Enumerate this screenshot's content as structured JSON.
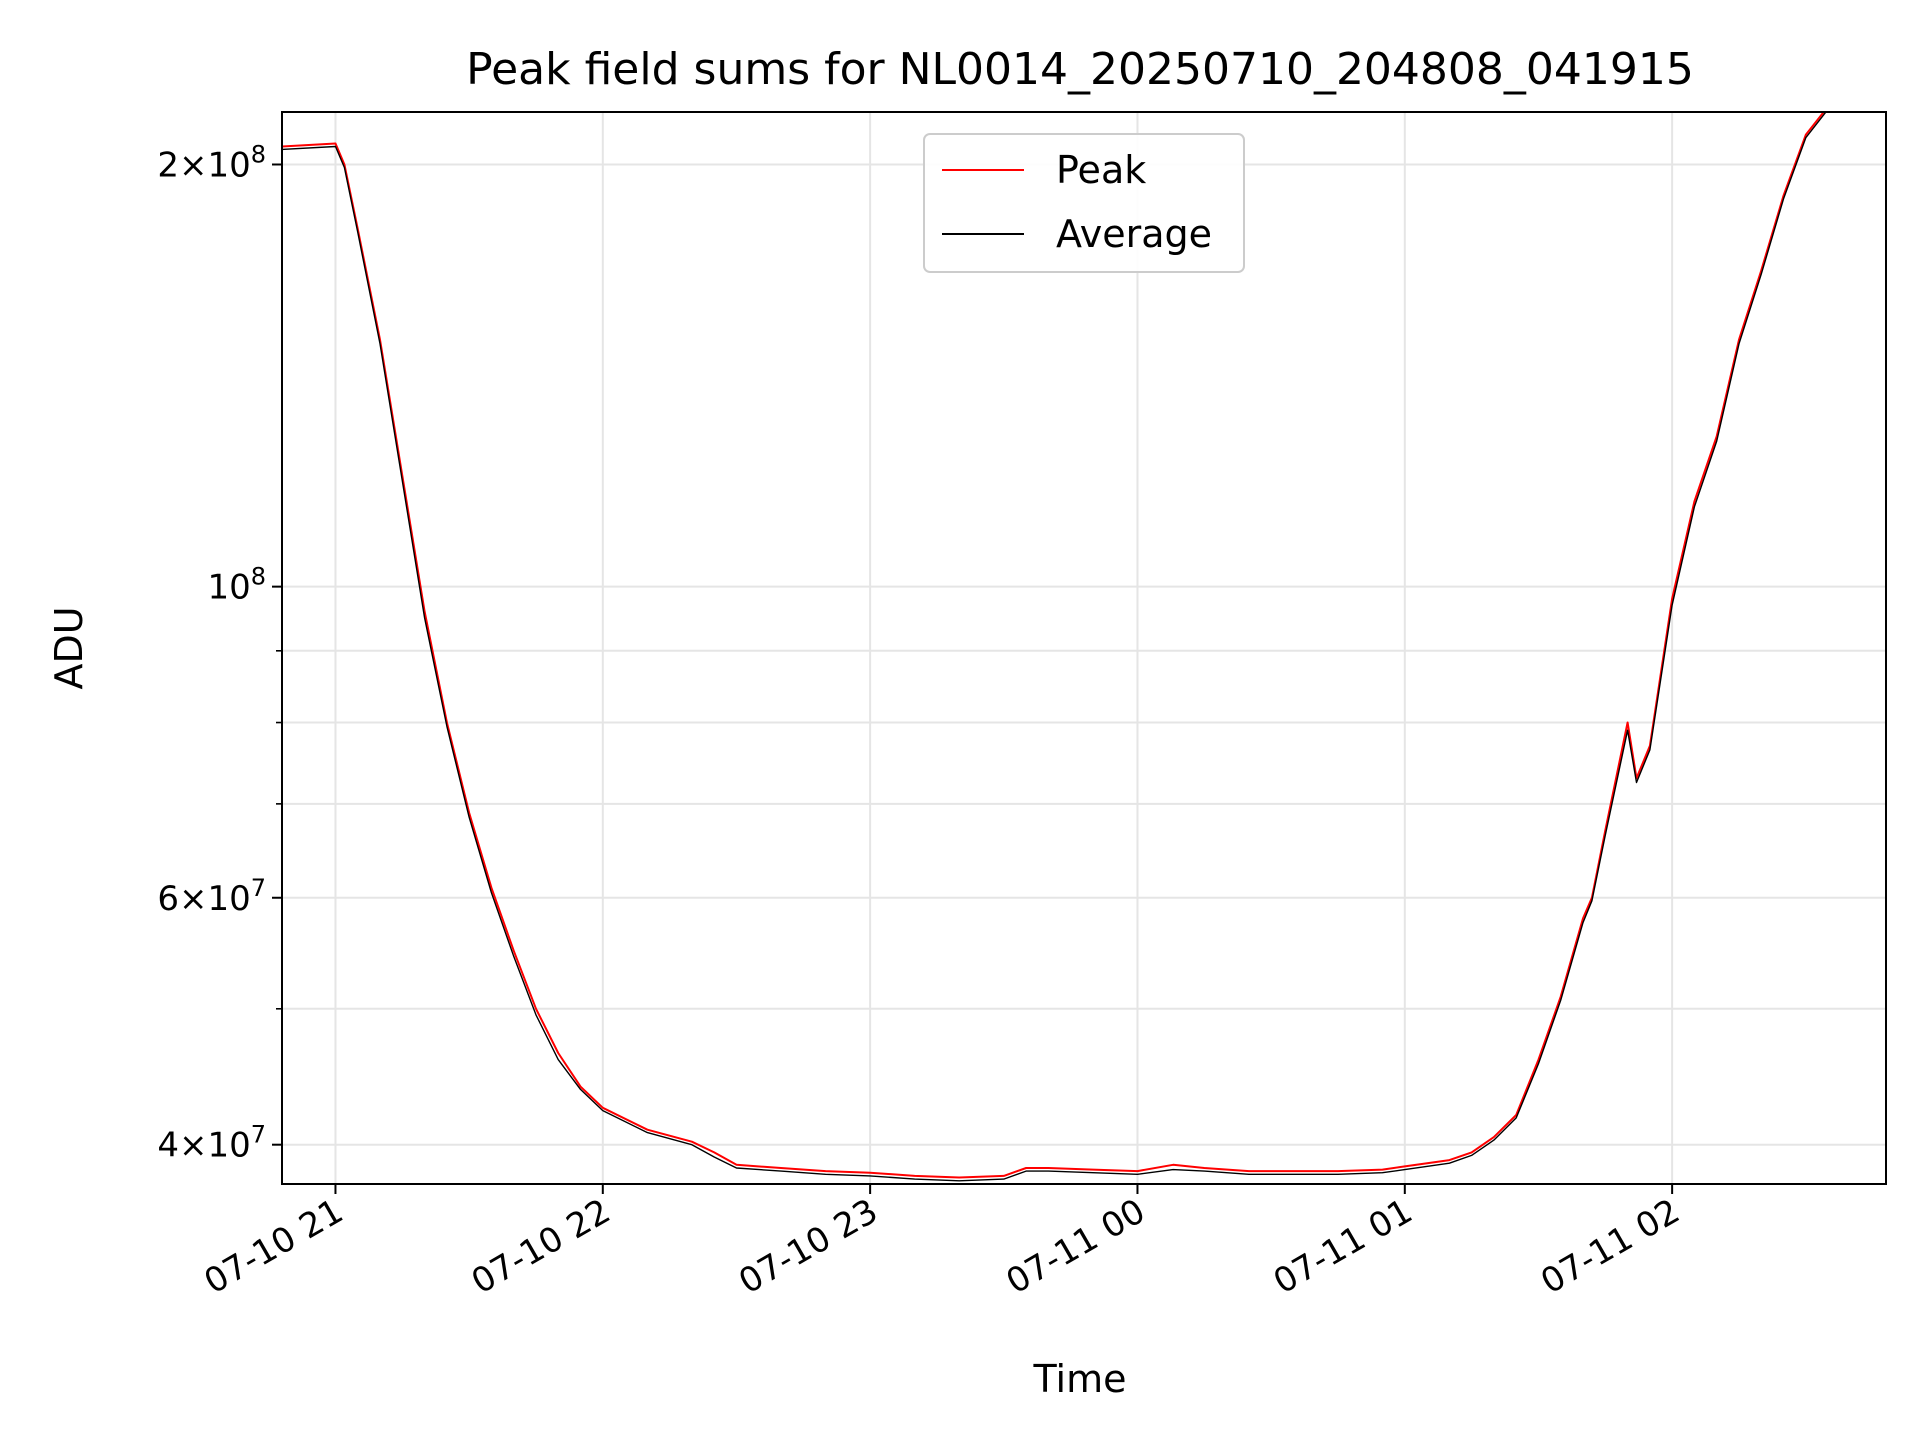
{
  "chart_data": {
    "type": "line",
    "title": "Peak field sums for NL0014_20250710_204808_041915",
    "xlabel": "Time",
    "ylabel": "ADU",
    "yscale": "log",
    "grid": true,
    "legend_position": "upper center",
    "xlim": [
      "2025-07-10 20:48",
      "2025-07-11 02:48"
    ],
    "ylim": [
      37500000,
      218000000
    ],
    "x_ticks": [
      {
        "value": "2025-07-10 21:00",
        "label": "07-10 21"
      },
      {
        "value": "2025-07-10 22:00",
        "label": "07-10 22"
      },
      {
        "value": "2025-07-10 23:00",
        "label": "07-10 23"
      },
      {
        "value": "2025-07-11 00:00",
        "label": "07-11 00"
      },
      {
        "value": "2025-07-11 01:00",
        "label": "07-11 01"
      },
      {
        "value": "2025-07-11 02:00",
        "label": "07-11 02"
      }
    ],
    "y_ticks_major": [
      {
        "value": 40000000,
        "base": "4",
        "exp": "7",
        "mult": true
      },
      {
        "value": 60000000,
        "base": "6",
        "exp": "7",
        "mult": true
      },
      {
        "value": 100000000,
        "base": "10",
        "exp": "8",
        "mult": false
      },
      {
        "value": 200000000,
        "base": "2",
        "exp": "8",
        "mult": true
      }
    ],
    "y_ticks_minor": [
      50000000,
      70000000,
      80000000,
      90000000
    ],
    "series": [
      {
        "name": "Peak",
        "color": "#ff0000",
        "x": [
          "2025-07-10 20:48",
          "2025-07-10 21:00",
          "2025-07-10 21:02",
          "2025-07-10 21:05",
          "2025-07-10 21:10",
          "2025-07-10 21:15",
          "2025-07-10 21:20",
          "2025-07-10 21:25",
          "2025-07-10 21:30",
          "2025-07-10 21:35",
          "2025-07-10 21:40",
          "2025-07-10 21:45",
          "2025-07-10 21:50",
          "2025-07-10 21:55",
          "2025-07-10 22:00",
          "2025-07-10 22:10",
          "2025-07-10 22:20",
          "2025-07-10 22:25",
          "2025-07-10 22:30",
          "2025-07-10 22:40",
          "2025-07-10 22:50",
          "2025-07-10 23:00",
          "2025-07-10 23:10",
          "2025-07-10 23:20",
          "2025-07-10 23:30",
          "2025-07-10 23:35",
          "2025-07-10 23:40",
          "2025-07-10 23:50",
          "2025-07-11 00:00",
          "2025-07-11 00:08",
          "2025-07-11 00:15",
          "2025-07-11 00:25",
          "2025-07-11 00:35",
          "2025-07-11 00:45",
          "2025-07-11 00:55",
          "2025-07-11 01:00",
          "2025-07-11 01:10",
          "2025-07-11 01:15",
          "2025-07-11 01:20",
          "2025-07-11 01:25",
          "2025-07-11 01:30",
          "2025-07-11 01:35",
          "2025-07-11 01:40",
          "2025-07-11 01:42",
          "2025-07-11 01:45",
          "2025-07-11 01:50",
          "2025-07-11 01:52",
          "2025-07-11 01:55",
          "2025-07-11 02:00",
          "2025-07-11 02:05",
          "2025-07-11 02:10",
          "2025-07-11 02:15",
          "2025-07-11 02:20",
          "2025-07-11 02:25",
          "2025-07-11 02:30",
          "2025-07-11 02:35"
        ],
        "values": [
          206000000,
          207000000,
          200000000,
          180000000,
          150000000,
          120000000,
          96000000,
          80000000,
          69000000,
          61000000,
          55000000,
          50000000,
          46500000,
          44000000,
          42500000,
          41000000,
          40200000,
          39500000,
          38700000,
          38500000,
          38300000,
          38200000,
          38000000,
          37900000,
          38000000,
          38500000,
          38500000,
          38400000,
          38300000,
          38700000,
          38500000,
          38300000,
          38300000,
          38300000,
          38400000,
          38600000,
          39000000,
          39500000,
          40500000,
          42000000,
          46000000,
          51000000,
          58000000,
          60000000,
          67000000,
          80000000,
          73000000,
          77000000,
          98000000,
          115000000,
          128000000,
          150000000,
          168000000,
          190000000,
          210000000,
          220000000
        ]
      },
      {
        "name": "Average",
        "color": "#000000",
        "x": [
          "2025-07-10 20:48",
          "2025-07-10 21:00",
          "2025-07-10 21:02",
          "2025-07-10 21:05",
          "2025-07-10 21:10",
          "2025-07-10 21:15",
          "2025-07-10 21:20",
          "2025-07-10 21:25",
          "2025-07-10 21:30",
          "2025-07-10 21:35",
          "2025-07-10 21:40",
          "2025-07-10 21:45",
          "2025-07-10 21:50",
          "2025-07-10 21:55",
          "2025-07-10 22:00",
          "2025-07-10 22:10",
          "2025-07-10 22:20",
          "2025-07-10 22:25",
          "2025-07-10 22:30",
          "2025-07-10 22:40",
          "2025-07-10 22:50",
          "2025-07-10 23:00",
          "2025-07-10 23:10",
          "2025-07-10 23:20",
          "2025-07-10 23:30",
          "2025-07-10 23:35",
          "2025-07-10 23:40",
          "2025-07-10 23:50",
          "2025-07-11 00:00",
          "2025-07-11 00:08",
          "2025-07-11 00:15",
          "2025-07-11 00:25",
          "2025-07-11 00:35",
          "2025-07-11 00:45",
          "2025-07-11 00:55",
          "2025-07-11 01:00",
          "2025-07-11 01:10",
          "2025-07-11 01:15",
          "2025-07-11 01:20",
          "2025-07-11 01:25",
          "2025-07-11 01:30",
          "2025-07-11 01:35",
          "2025-07-11 01:40",
          "2025-07-11 01:42",
          "2025-07-11 01:45",
          "2025-07-11 01:50",
          "2025-07-11 01:52",
          "2025-07-11 01:55",
          "2025-07-11 02:00",
          "2025-07-11 02:05",
          "2025-07-11 02:10",
          "2025-07-11 02:15",
          "2025-07-11 02:20",
          "2025-07-11 02:25",
          "2025-07-11 02:30",
          "2025-07-11 02:35"
        ],
        "values": [
          205000000,
          206000000,
          199000000,
          179000000,
          149000000,
          119000000,
          95000000,
          79500000,
          68500000,
          60500000,
          54500000,
          49500000,
          46000000,
          43800000,
          42300000,
          40800000,
          40000000,
          39200000,
          38500000,
          38300000,
          38100000,
          38000000,
          37800000,
          37700000,
          37800000,
          38300000,
          38300000,
          38200000,
          38100000,
          38400000,
          38300000,
          38100000,
          38100000,
          38100000,
          38200000,
          38400000,
          38800000,
          39300000,
          40300000,
          41800000,
          45700000,
          50700000,
          57600000,
          59700000,
          66500000,
          79000000,
          72500000,
          76500000,
          97000000,
          114000000,
          127000000,
          149000000,
          167000000,
          189000000,
          209000000,
          219000000
        ]
      }
    ]
  }
}
